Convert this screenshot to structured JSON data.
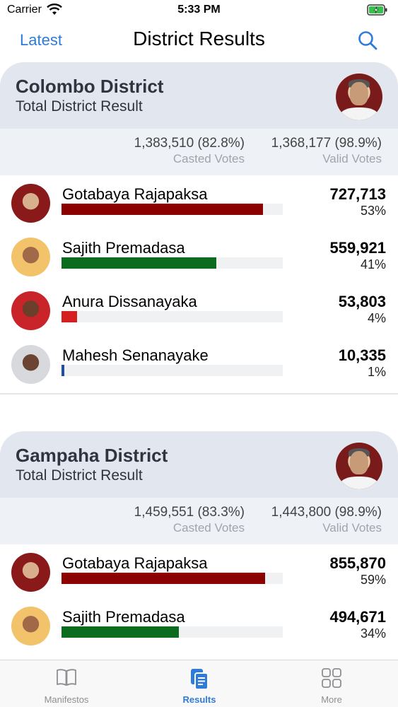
{
  "status_bar": {
    "carrier": "Carrier",
    "time": "5:33 PM"
  },
  "nav": {
    "back_label": "Latest",
    "title": "District Results"
  },
  "districts": [
    {
      "name": "Colombo District",
      "subtitle": "Total District Result",
      "casted_value": "1,383,510 (82.8%)",
      "casted_label": "Casted Votes",
      "valid_value": "1,368,177 (98.9%)",
      "valid_label": "Valid Votes",
      "candidates": [
        {
          "name": "Gotabaya Rajapaksa",
          "votes": "727,713",
          "percent": "53%",
          "share": 0.91,
          "color": "#8b0000"
        },
        {
          "name": "Sajith Premadasa",
          "votes": "559,921",
          "percent": "41%",
          "share": 0.7,
          "color": "#0b6b1f"
        },
        {
          "name": "Anura Dissanayaka",
          "votes": "53,803",
          "percent": "4%",
          "share": 0.07,
          "color": "#d42020"
        },
        {
          "name": "Mahesh Senanayake",
          "votes": "10,335",
          "percent": "1%",
          "share": 0.013,
          "color": "#1e4fa8"
        }
      ]
    },
    {
      "name": "Gampaha District",
      "subtitle": "Total District Result",
      "casted_value": "1,459,551 (83.3%)",
      "casted_label": "Casted Votes",
      "valid_value": "1,443,800 (98.9%)",
      "valid_label": "Valid Votes",
      "candidates": [
        {
          "name": "Gotabaya Rajapaksa",
          "votes": "855,870",
          "percent": "59%",
          "share": 0.92,
          "color": "#8b0000"
        },
        {
          "name": "Sajith Premadasa",
          "votes": "494,671",
          "percent": "34%",
          "share": 0.53,
          "color": "#0b6b1f"
        }
      ]
    }
  ],
  "tabs": [
    {
      "label": "Manifestos",
      "icon": "book-icon"
    },
    {
      "label": "Results",
      "icon": "documents-icon"
    },
    {
      "label": "More",
      "icon": "grid-icon"
    }
  ],
  "colors": {
    "accent": "#2f7bd8",
    "header_bg": "#e2e6ee",
    "summary_bg": "#eef1f6"
  }
}
